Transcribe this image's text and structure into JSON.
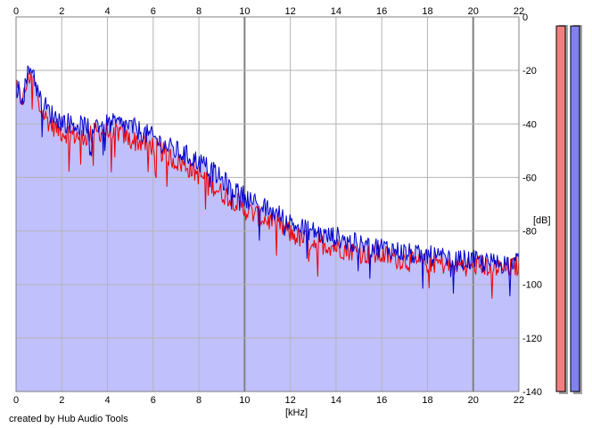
{
  "chart_data": {
    "type": "line",
    "title": "",
    "xlabel": "[kHz]",
    "ylabel": "[dB]",
    "xlim": [
      0,
      22
    ],
    "ylim": [
      -140,
      0
    ],
    "x_ticks": [
      0,
      2,
      4,
      6,
      8,
      10,
      12,
      14,
      16,
      18,
      20,
      22
    ],
    "y_ticks": [
      0,
      -20,
      -40,
      -60,
      -80,
      -100,
      -120,
      -140
    ],
    "grid": true,
    "credit": "created by Hub Audio Tools",
    "colors": {
      "fill": "#c0c0fc",
      "red_series": "#ee0000",
      "blue_series": "#0000cc",
      "grid": "#b4b4b4",
      "meter_left": "#f08080",
      "meter_right": "#8080f0"
    },
    "series": [
      {
        "color": "#ee0000",
        "x": [
          0,
          0.3,
          0.5,
          0.7,
          1,
          1.5,
          2,
          2.5,
          3,
          3.5,
          4,
          4.5,
          5,
          5.5,
          6,
          6.5,
          7,
          7.5,
          8,
          8.5,
          9,
          9.5,
          10,
          10.5,
          11,
          11.5,
          12,
          12.5,
          13,
          13.5,
          14,
          14.5,
          15,
          15.5,
          16,
          16.5,
          17,
          17.5,
          18,
          18.5,
          19,
          19.5,
          20,
          20.5,
          21,
          21.5,
          22
        ],
        "y": [
          -27,
          -31,
          -24,
          -20,
          -34,
          -40,
          -43,
          -44,
          -45,
          -43,
          -43,
          -43,
          -46,
          -47,
          -48,
          -51,
          -54,
          -56,
          -59,
          -62,
          -66,
          -68,
          -72,
          -74,
          -76,
          -78,
          -81,
          -83,
          -84,
          -85,
          -86,
          -87,
          -88,
          -89,
          -89,
          -90,
          -91,
          -92,
          -92,
          -92,
          -93,
          -93,
          -93,
          -93,
          -94,
          -94,
          -93
        ]
      },
      {
        "color": "#0000cc",
        "x": [
          0,
          0.3,
          0.5,
          0.7,
          1,
          1.5,
          2,
          2.5,
          3,
          3.5,
          4,
          4.5,
          5,
          5.5,
          6,
          6.5,
          7,
          7.5,
          8,
          8.5,
          9,
          9.5,
          10,
          10.5,
          11,
          11.5,
          12,
          12.5,
          13,
          13.5,
          14,
          14.5,
          15,
          15.5,
          16,
          16.5,
          17,
          17.5,
          18,
          18.5,
          19,
          19.5,
          20,
          20.5,
          21,
          21.5,
          22
        ],
        "y": [
          -26,
          -30,
          -22,
          -18,
          -30,
          -36,
          -39,
          -40,
          -41,
          -40,
          -40,
          -40,
          -41,
          -43,
          -45,
          -48,
          -50,
          -52,
          -54,
          -57,
          -61,
          -64,
          -67,
          -70,
          -72,
          -74,
          -77,
          -79,
          -80,
          -82,
          -82,
          -84,
          -85,
          -86,
          -86,
          -87,
          -88,
          -89,
          -89,
          -90,
          -91,
          -91,
          -91,
          -92,
          -92,
          -92,
          -92
        ]
      }
    ],
    "meters": [
      {
        "color": "#f08080",
        "level": 0.99
      },
      {
        "color": "#8080f0",
        "level": 0.99
      }
    ]
  }
}
